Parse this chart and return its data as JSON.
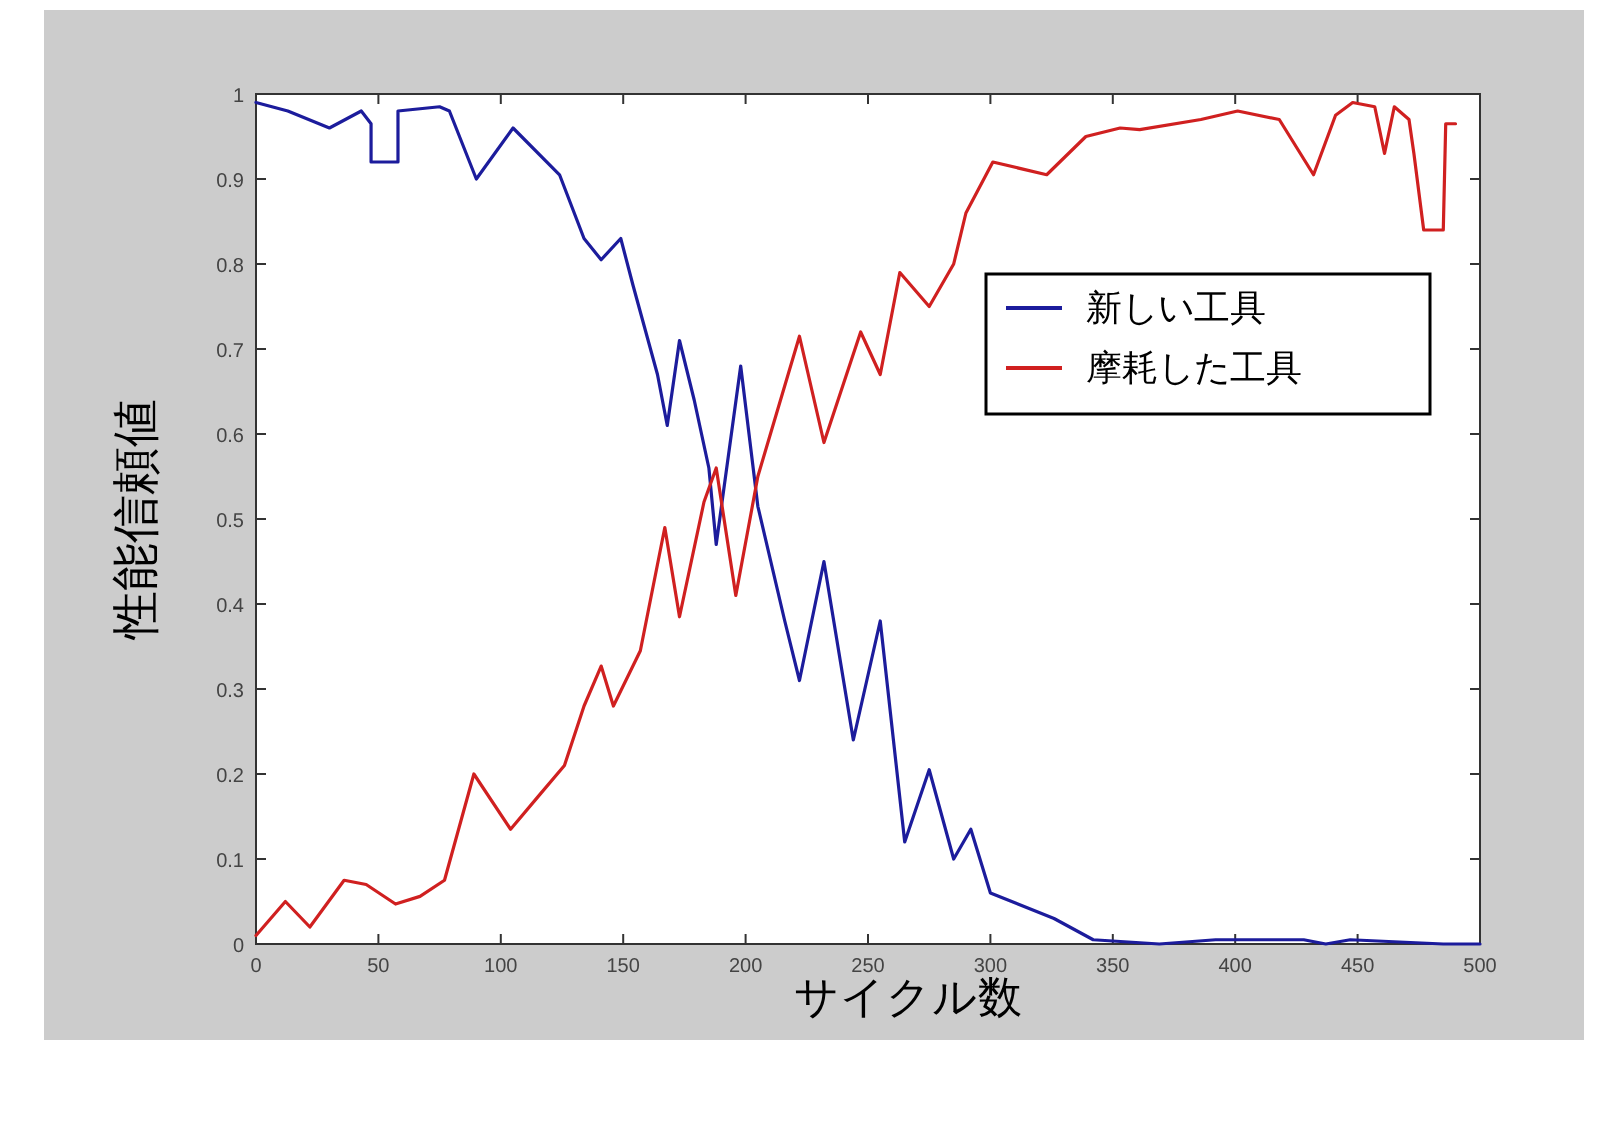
{
  "chart_data": {
    "type": "line",
    "xlabel": "サイクル数",
    "ylabel": "性能信頼値",
    "xlim": [
      0,
      500
    ],
    "ylim": [
      0,
      1
    ],
    "xticks": [
      0,
      50,
      100,
      150,
      200,
      250,
      300,
      350,
      400,
      450,
      500
    ],
    "yticks": [
      0,
      0.1,
      0.2,
      0.3,
      0.4,
      0.5,
      0.6,
      0.7,
      0.8,
      0.9,
      1
    ],
    "legend": "right",
    "grid": false,
    "series": [
      {
        "name": "新しい工具",
        "color": "#1c1c9c",
        "x": [
          0,
          13,
          30,
          43,
          47,
          47,
          58,
          58,
          75,
          79,
          90,
          105,
          124,
          134,
          141,
          149,
          154,
          164,
          168,
          173,
          179,
          185,
          188,
          198,
          205,
          216,
          222,
          232,
          244,
          255,
          265,
          275,
          285,
          292,
          300,
          326,
          342,
          369,
          392,
          428,
          437,
          447,
          485,
          500
        ],
        "values": [
          0.99,
          0.98,
          0.96,
          0.98,
          0.965,
          0.92,
          0.92,
          0.98,
          0.985,
          0.98,
          0.9,
          0.96,
          0.905,
          0.83,
          0.805,
          0.83,
          0.775,
          0.67,
          0.61,
          0.71,
          0.64,
          0.56,
          0.47,
          0.68,
          0.515,
          0.38,
          0.31,
          0.45,
          0.24,
          0.38,
          0.12,
          0.205,
          0.1,
          0.135,
          0.06,
          0.03,
          0.005,
          0,
          0.005,
          0.005,
          0,
          0.005,
          0,
          0
        ]
      },
      {
        "name": "摩耗した工具",
        "color": "#d02020",
        "x": [
          0,
          12,
          22,
          36,
          45,
          57,
          67,
          77,
          89,
          104,
          116,
          126,
          134,
          141,
          146,
          157,
          167,
          173,
          183,
          188,
          196,
          205,
          222,
          232,
          247,
          255,
          263,
          275,
          285,
          290,
          301,
          323,
          339,
          353,
          361,
          386,
          401,
          418,
          432,
          441,
          448,
          457,
          461,
          465,
          471,
          473,
          477,
          485,
          486,
          490
        ],
        "values": [
          0.01,
          0.05,
          0.02,
          0.075,
          0.07,
          0.047,
          0.056,
          0.075,
          0.2,
          0.135,
          0.176,
          0.21,
          0.28,
          0.327,
          0.28,
          0.345,
          0.49,
          0.385,
          0.52,
          0.56,
          0.41,
          0.55,
          0.715,
          0.59,
          0.72,
          0.67,
          0.79,
          0.75,
          0.8,
          0.86,
          0.92,
          0.905,
          0.95,
          0.96,
          0.958,
          0.97,
          0.98,
          0.97,
          0.905,
          0.975,
          0.99,
          0.985,
          0.93,
          0.985,
          0.97,
          0.93,
          0.84,
          0.84,
          0.965,
          0.965
        ]
      }
    ]
  }
}
